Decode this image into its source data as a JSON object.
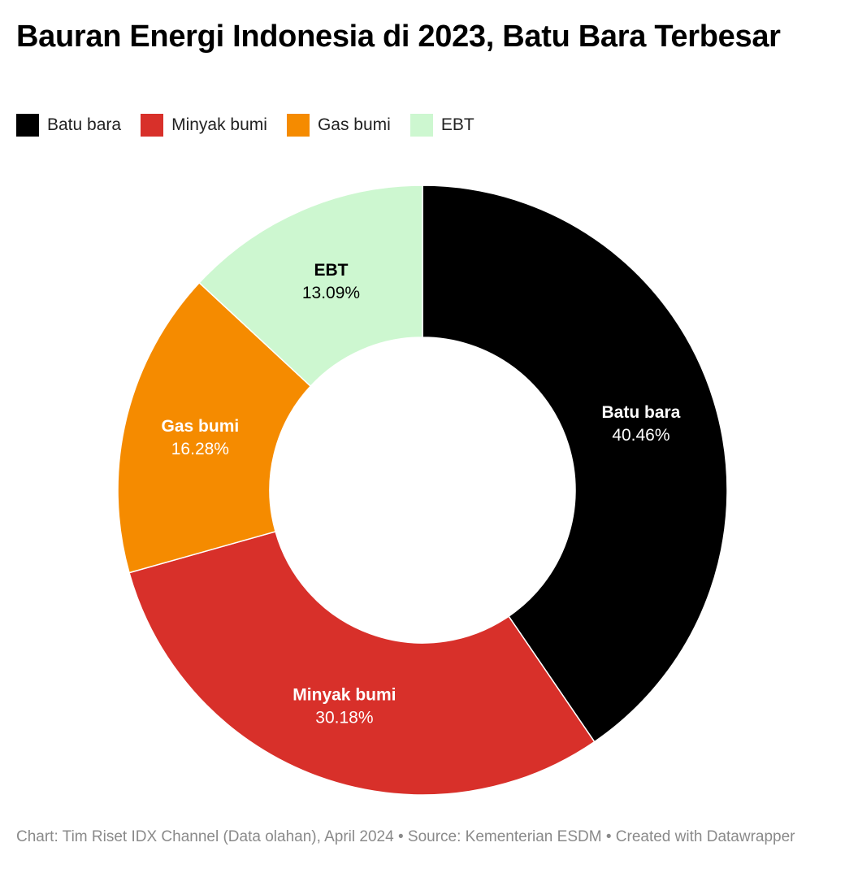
{
  "title": "Bauran Energi Indonesia di 2023, Batu Bara Terbesar",
  "footer": {
    "chart": "Chart: Tim Riset IDX Channel (Data olahan), April 2024",
    "separator1": " • ",
    "source": "Source: Kementerian ESDM",
    "separator2": " • ",
    "created": "Created with Datawrapper"
  },
  "chart_data": {
    "type": "pie",
    "subtype": "donut",
    "categories": [
      "Batu bara",
      "Minyak bumi",
      "Gas bumi",
      "EBT"
    ],
    "values": [
      40.46,
      30.18,
      16.28,
      13.09
    ],
    "value_labels": [
      "40.46%",
      "30.18%",
      "16.28%",
      "13.09%"
    ],
    "colors": [
      "#000000",
      "#d8302a",
      "#f58b00",
      "#cdf7d0"
    ],
    "label_colors": [
      "#ffffff",
      "#ffffff",
      "#ffffff",
      "#000000"
    ],
    "legend_position": "top-left"
  }
}
